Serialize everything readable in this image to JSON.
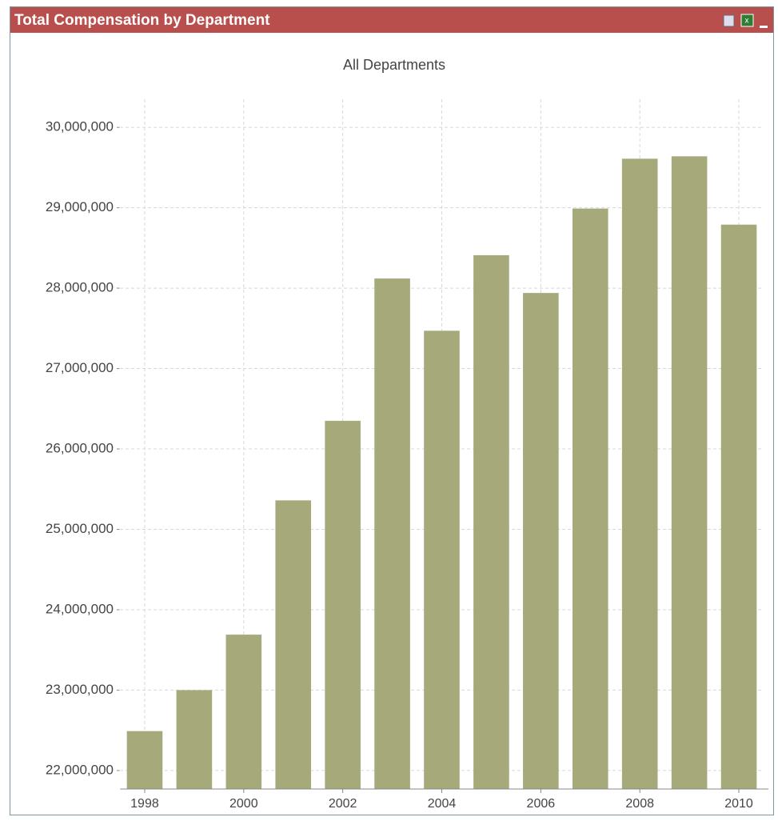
{
  "panel_title": "Total Compensation by Department",
  "chart_data": {
    "type": "bar",
    "title": "All Departments",
    "categories": [
      "1998",
      null,
      "2000",
      null,
      "2002",
      null,
      "2004",
      null,
      "2006",
      null,
      "2008",
      null,
      "2010"
    ],
    "values": [
      22490000,
      23000000,
      23690000,
      25360000,
      26350000,
      28120000,
      27470000,
      28410000,
      27940000,
      28990000,
      29610000,
      29640000,
      28790000
    ],
    "color": "#a6a97a",
    "ylim": [
      21770000,
      30350000
    ],
    "yticks": [
      {
        "value": 22000000,
        "label": "22,000,000"
      },
      {
        "value": 23000000,
        "label": "23,000,000"
      },
      {
        "value": 24000000,
        "label": "24,000,000"
      },
      {
        "value": 25000000,
        "label": "25,000,000"
      },
      {
        "value": 26000000,
        "label": "26,000,000"
      },
      {
        "value": 27000000,
        "label": "27,000,000"
      },
      {
        "value": 28000000,
        "label": "28,000,000"
      },
      {
        "value": 29000000,
        "label": "29,000,000"
      },
      {
        "value": 30000000,
        "label": "30,000,000"
      }
    ],
    "grid": true
  }
}
